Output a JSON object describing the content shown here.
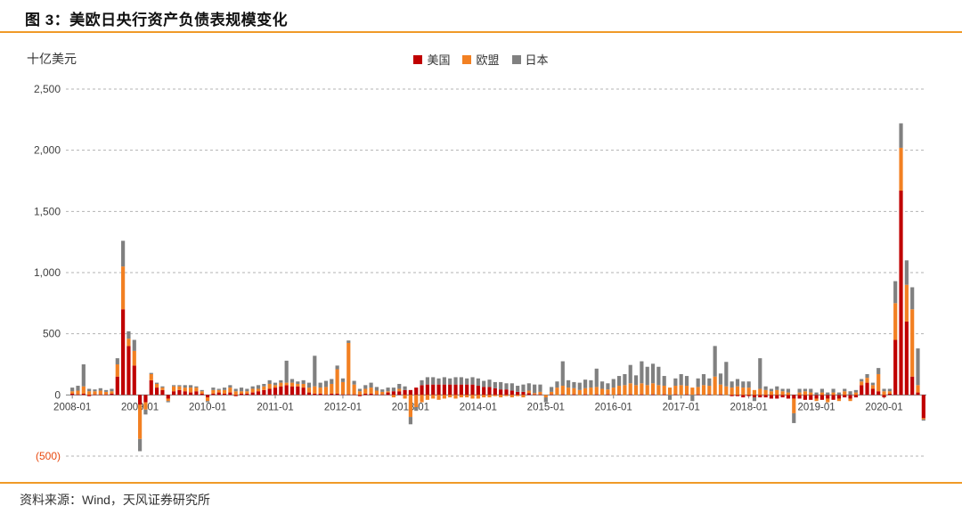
{
  "header": {
    "title": "图 3：美欧日央行资产负债表规模变化"
  },
  "footer": {
    "source": "资料来源：Wind，天风证券研究所"
  },
  "colors": {
    "rule": "#F09A28",
    "axis": "#7f7f7f",
    "grid": "#b3b3b3",
    "tick_label": "#404040",
    "negative_tick_label": "#E8490F"
  },
  "chart_data": {
    "type": "bar",
    "stacked": true,
    "title": "图 3：美欧日央行资产负债表规模变化",
    "ylabel": "十亿美元",
    "xlabel": "",
    "ylim": [
      -500,
      2500
    ],
    "grid": true,
    "legend_position": "top",
    "yticks": [
      {
        "value": 2500,
        "label": "2,500"
      },
      {
        "value": 2000,
        "label": "2,000"
      },
      {
        "value": 1500,
        "label": "1,500"
      },
      {
        "value": 1000,
        "label": "1,000"
      },
      {
        "value": 500,
        "label": "500"
      },
      {
        "value": 0,
        "label": "0"
      },
      {
        "value": -500,
        "label": "(500)",
        "color": "#E8490F"
      }
    ],
    "xtick_labels": [
      "2008-01",
      "2009-01",
      "2010-01",
      "2011-01",
      "2012-01",
      "2013-01",
      "2014-01",
      "2015-01",
      "2016-01",
      "2017-01",
      "2018-01",
      "2019-01",
      "2020-01"
    ],
    "categories": [
      "2008-01",
      "2008-02",
      "2008-03",
      "2008-04",
      "2008-05",
      "2008-06",
      "2008-07",
      "2008-08",
      "2008-09",
      "2008-10",
      "2008-11",
      "2008-12",
      "2009-01",
      "2009-02",
      "2009-03",
      "2009-04",
      "2009-05",
      "2009-06",
      "2009-07",
      "2009-08",
      "2009-09",
      "2009-10",
      "2009-11",
      "2009-12",
      "2010-01",
      "2010-02",
      "2010-03",
      "2010-04",
      "2010-05",
      "2010-06",
      "2010-07",
      "2010-08",
      "2010-09",
      "2010-10",
      "2010-11",
      "2010-12",
      "2011-01",
      "2011-02",
      "2011-03",
      "2011-04",
      "2011-05",
      "2011-06",
      "2011-07",
      "2011-08",
      "2011-09",
      "2011-10",
      "2011-11",
      "2011-12",
      "2012-01",
      "2012-02",
      "2012-03",
      "2012-04",
      "2012-05",
      "2012-06",
      "2012-07",
      "2012-08",
      "2012-09",
      "2012-10",
      "2012-11",
      "2012-12",
      "2013-01",
      "2013-02",
      "2013-03",
      "2013-04",
      "2013-05",
      "2013-06",
      "2013-07",
      "2013-08",
      "2013-09",
      "2013-10",
      "2013-11",
      "2013-12",
      "2014-01",
      "2014-02",
      "2014-03",
      "2014-04",
      "2014-05",
      "2014-06",
      "2014-07",
      "2014-08",
      "2014-09",
      "2014-10",
      "2014-11",
      "2014-12",
      "2015-01",
      "2015-02",
      "2015-03",
      "2015-04",
      "2015-05",
      "2015-06",
      "2015-07",
      "2015-08",
      "2015-09",
      "2015-10",
      "2015-11",
      "2015-12",
      "2016-01",
      "2016-02",
      "2016-03",
      "2016-04",
      "2016-05",
      "2016-06",
      "2016-07",
      "2016-08",
      "2016-09",
      "2016-10",
      "2016-11",
      "2016-12",
      "2017-01",
      "2017-02",
      "2017-03",
      "2017-04",
      "2017-05",
      "2017-06",
      "2017-07",
      "2017-08",
      "2017-09",
      "2017-10",
      "2017-11",
      "2017-12",
      "2018-01",
      "2018-02",
      "2018-03",
      "2018-04",
      "2018-05",
      "2018-06",
      "2018-07",
      "2018-08",
      "2018-09",
      "2018-10",
      "2018-11",
      "2018-12",
      "2019-01",
      "2019-02",
      "2019-03",
      "2019-04",
      "2019-05",
      "2019-06",
      "2019-07",
      "2019-08",
      "2019-09",
      "2019-10",
      "2019-11",
      "2019-12",
      "2020-01",
      "2020-02",
      "2020-03",
      "2020-04",
      "2020-05",
      "2020-06",
      "2020-07",
      "2020-08"
    ],
    "series": [
      {
        "name": "美国",
        "color": "#C00000",
        "values": [
          10,
          5,
          10,
          -10,
          5,
          5,
          5,
          10,
          150,
          700,
          400,
          240,
          -80,
          -60,
          120,
          60,
          40,
          -30,
          30,
          40,
          30,
          20,
          30,
          10,
          -20,
          10,
          20,
          10,
          20,
          -10,
          10,
          10,
          20,
          30,
          40,
          50,
          60,
          70,
          80,
          70,
          70,
          60,
          20,
          10,
          10,
          5,
          10,
          10,
          5,
          5,
          5,
          -10,
          10,
          10,
          5,
          5,
          20,
          30,
          30,
          40,
          40,
          60,
          80,
          85,
          85,
          85,
          85,
          85,
          85,
          85,
          85,
          85,
          75,
          65,
          65,
          55,
          45,
          45,
          35,
          25,
          25,
          15,
          5,
          5,
          0,
          5,
          0,
          5,
          0,
          5,
          0,
          5,
          0,
          5,
          0,
          5,
          0,
          5,
          0,
          5,
          0,
          5,
          0,
          5,
          0,
          5,
          0,
          5,
          0,
          5,
          0,
          5,
          0,
          5,
          0,
          5,
          0,
          -10,
          -10,
          -20,
          -10,
          -20,
          -20,
          -20,
          -30,
          -30,
          -20,
          -30,
          -30,
          -30,
          -40,
          -40,
          -30,
          -40,
          -30,
          -40,
          -30,
          -20,
          -30,
          -20,
          80,
          100,
          50,
          30,
          -20,
          10,
          450,
          1670,
          600,
          150,
          20,
          -190
        ]
      },
      {
        "name": "欧盟",
        "color": "#F28022",
        "values": [
          20,
          30,
          60,
          30,
          25,
          30,
          20,
          20,
          100,
          350,
          60,
          120,
          -280,
          -60,
          50,
          30,
          20,
          -20,
          40,
          30,
          30,
          40,
          30,
          20,
          -30,
          30,
          20,
          30,
          40,
          30,
          20,
          20,
          30,
          20,
          30,
          40,
          20,
          30,
          20,
          30,
          20,
          30,
          40,
          60,
          50,
          60,
          80,
          200,
          100,
          420,
          80,
          30,
          40,
          50,
          30,
          20,
          10,
          -20,
          20,
          -30,
          -180,
          -100,
          -60,
          -40,
          -30,
          -40,
          -30,
          -20,
          -30,
          -20,
          -20,
          -30,
          -30,
          -20,
          -20,
          -10,
          -20,
          -10,
          -20,
          -10,
          -20,
          20,
          10,
          20,
          -20,
          20,
          60,
          70,
          60,
          50,
          40,
          50,
          60,
          60,
          50,
          40,
          60,
          70,
          80,
          90,
          80,
          90,
          80,
          90,
          80,
          70,
          60,
          70,
          80,
          70,
          60,
          60,
          80,
          70,
          150,
          80,
          70,
          60,
          70,
          60,
          60,
          40,
          50,
          40,
          30,
          40,
          30,
          20,
          -120,
          20,
          30,
          20,
          -20,
          20,
          -30,
          20,
          -20,
          30,
          -20,
          20,
          30,
          40,
          30,
          140,
          30,
          20,
          300,
          350,
          300,
          550,
          60,
          -10
        ]
      },
      {
        "name": "日本",
        "color": "#808080",
        "values": [
          30,
          40,
          180,
          20,
          15,
          20,
          15,
          20,
          50,
          210,
          60,
          90,
          -100,
          -40,
          10,
          10,
          10,
          -10,
          10,
          10,
          20,
          20,
          10,
          10,
          -10,
          20,
          10,
          20,
          20,
          20,
          30,
          20,
          20,
          30,
          20,
          30,
          20,
          20,
          180,
          30,
          20,
          30,
          40,
          250,
          40,
          50,
          40,
          30,
          30,
          20,
          30,
          20,
          30,
          40,
          30,
          20,
          30,
          30,
          40,
          30,
          -60,
          -30,
          40,
          60,
          60,
          50,
          60,
          50,
          60,
          60,
          50,
          60,
          60,
          50,
          60,
          50,
          60,
          50,
          60,
          50,
          60,
          60,
          70,
          60,
          -40,
          40,
          50,
          200,
          60,
          50,
          60,
          70,
          60,
          150,
          60,
          50,
          70,
          80,
          90,
          150,
          80,
          180,
          150,
          160,
          150,
          80,
          -40,
          60,
          90,
          80,
          -50,
          70,
          90,
          60,
          250,
          90,
          200,
          50,
          60,
          50,
          50,
          -30,
          250,
          30,
          20,
          30,
          20,
          30,
          -80,
          30,
          20,
          30,
          20,
          30,
          20,
          30,
          20,
          20,
          30,
          20,
          20,
          30,
          20,
          50,
          20,
          20,
          180,
          200,
          200,
          180,
          300,
          -10
        ]
      }
    ]
  }
}
